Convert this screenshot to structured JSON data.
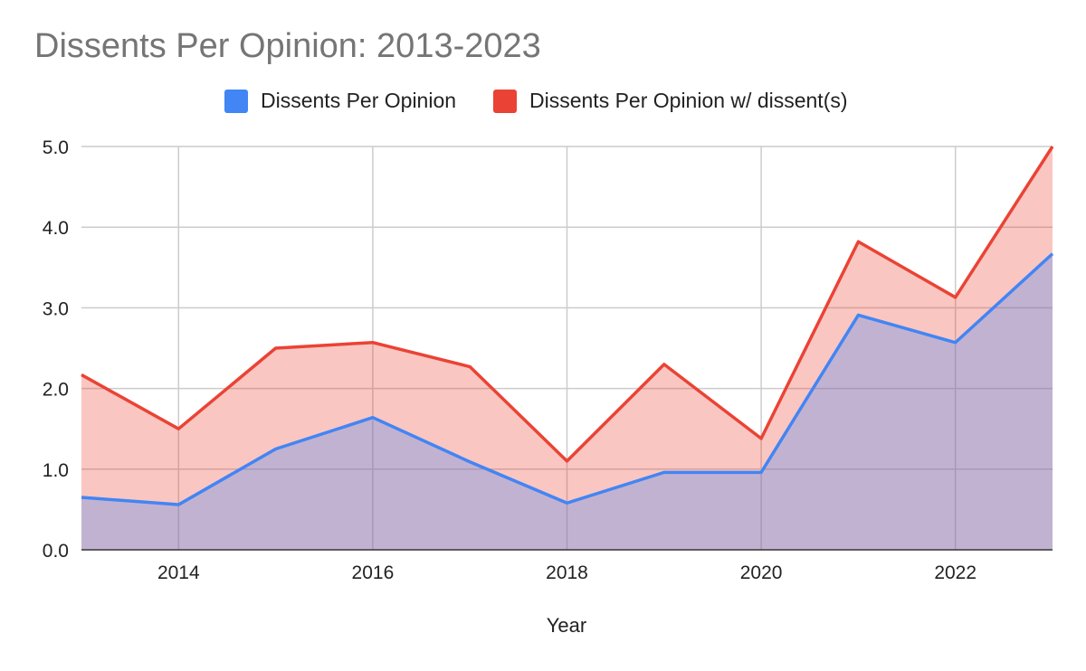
{
  "chart_data": {
    "type": "area",
    "title": "Dissents Per Opinion: 2013-2023",
    "xlabel": "Year",
    "ylabel": "",
    "x": [
      2013,
      2014,
      2015,
      2016,
      2017,
      2018,
      2019,
      2020,
      2021,
      2022,
      2023
    ],
    "x_ticks": [
      "2014",
      "2016",
      "2018",
      "2020",
      "2022"
    ],
    "y_ticks": [
      "0.0",
      "1.0",
      "2.0",
      "3.0",
      "4.0",
      "5.0"
    ],
    "xlim": [
      2013,
      2023
    ],
    "ylim": [
      0,
      5
    ],
    "grid": true,
    "legend_position": "top",
    "series": [
      {
        "name": "Dissents Per Opinion",
        "color": "#4285f4",
        "values": [
          0.65,
          0.56,
          1.25,
          1.64,
          1.09,
          0.58,
          0.96,
          0.96,
          2.91,
          2.57,
          3.67
        ]
      },
      {
        "name": "Dissents Per Opinion w/ dissent(s)",
        "color": "#ea4335",
        "values": [
          2.17,
          1.5,
          2.5,
          2.57,
          2.27,
          1.1,
          2.3,
          1.38,
          3.82,
          3.13,
          5.0
        ]
      }
    ]
  }
}
